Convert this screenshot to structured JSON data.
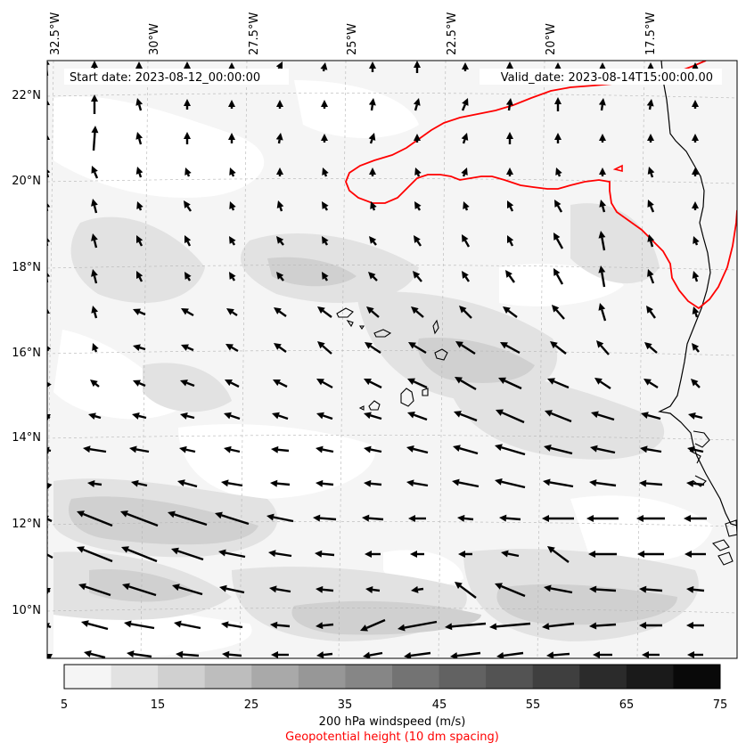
{
  "map": {
    "start_label": "Start date: 2023-08-12_00:00:00",
    "valid_label": "Valid_date: 2023-08-14T15:00:00.00",
    "lon_ticks": [
      "32.5°W",
      "30°W",
      "27.5°W",
      "25°W",
      "22.5°W",
      "20°W",
      "17.5°W"
    ],
    "lat_ticks": [
      "22°N",
      "20°N",
      "18°N",
      "16°N",
      "14°N",
      "12°N",
      "10°N"
    ],
    "extent": {
      "lon_min": -33.0,
      "lon_max": -15.5,
      "lat_min": 8.8,
      "lat_max": 22.8
    },
    "contour_color": "#ff0000",
    "coastline_color": "#000000",
    "land_features": [
      "West African coastline",
      "Cape Verde islands"
    ]
  },
  "colorbar": {
    "ticks": [
      "5",
      "15",
      "25",
      "35",
      "45",
      "55",
      "65",
      "75"
    ],
    "levels": [
      5,
      10,
      15,
      20,
      25,
      30,
      35,
      40,
      45,
      50,
      55,
      60,
      65,
      70,
      75
    ],
    "colors": [
      "#f5f5f5",
      "#e2e2e2",
      "#d0d0d0",
      "#bdbdbd",
      "#a9a9a9",
      "#979797",
      "#868686",
      "#737373",
      "#626262",
      "#535353",
      "#3f3f3f",
      "#2b2b2b",
      "#1a1a1a",
      "#090909"
    ],
    "label": "200 hPa windspeed (m/s)",
    "sublabel": "Geopotential height (10 dm spacing)",
    "sublabel_color": "#ff0000"
  }
}
